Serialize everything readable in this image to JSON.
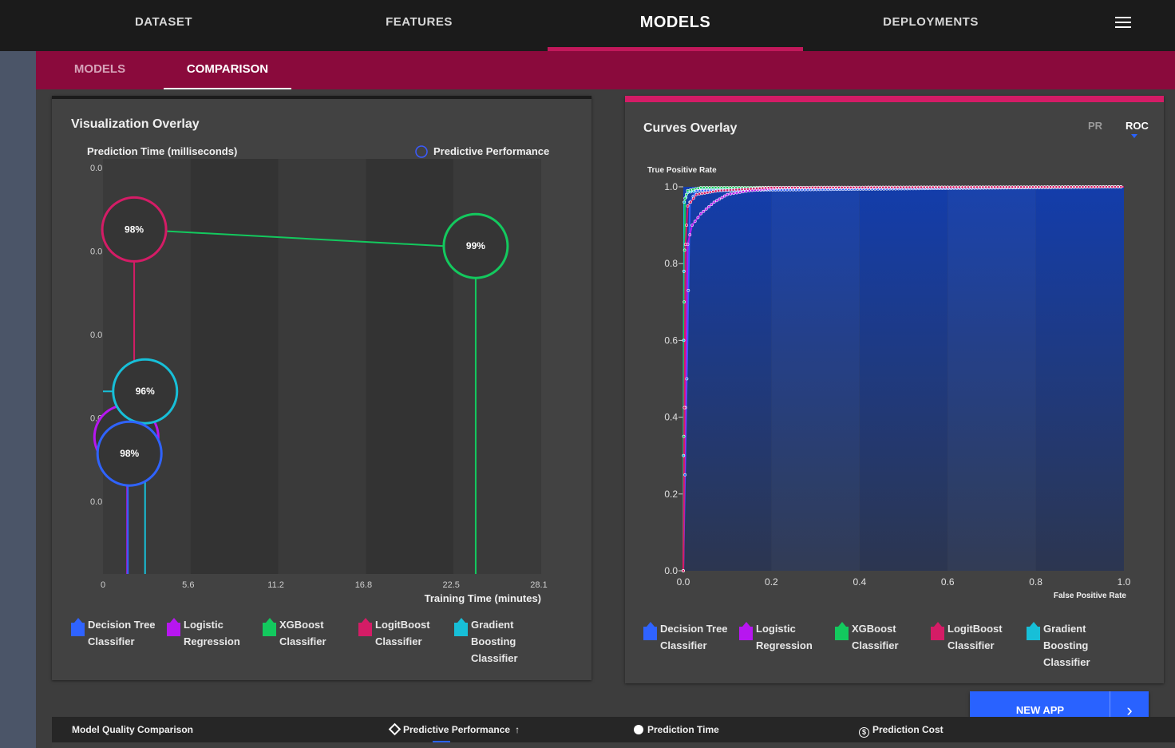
{
  "topnav": {
    "tabs": [
      {
        "label": "DATASET"
      },
      {
        "label": "FEATURES"
      },
      {
        "label": "MODELS"
      },
      {
        "label": "DEPLOYMENTS"
      }
    ],
    "active_tab": "MODELS"
  },
  "subnav": {
    "tabs": [
      {
        "label": "MODELS"
      },
      {
        "label": "COMPARISON"
      }
    ],
    "active_tab": "COMPARISON"
  },
  "viz_overlay": {
    "title": "Visualization Overlay",
    "legend_marker": "Predictive Performance",
    "legend": [
      {
        "label": "Decision Tree Classifier",
        "color": "#2f63ff"
      },
      {
        "label": "Logistic Regression",
        "color": "#b716f0"
      },
      {
        "label": "XGBoost Classifier",
        "color": "#13c95e"
      },
      {
        "label": "LogitBoost Classifier",
        "color": "#d41c66"
      },
      {
        "label": "Gradient Boosting Classifier",
        "color": "#17bfd8"
      }
    ]
  },
  "curves_overlay": {
    "title": "Curves Overlay",
    "toggle": {
      "pr": "PR",
      "roc": "ROC",
      "active": "ROC"
    },
    "legend": [
      {
        "label": "Decision Tree Classifier",
        "color": "#2f63ff"
      },
      {
        "label": "Logistic Regression",
        "color": "#b716f0"
      },
      {
        "label": "XGBoost Classifier",
        "color": "#13c95e"
      },
      {
        "label": "LogitBoost Classifier",
        "color": "#d41c66"
      },
      {
        "label": "Gradient Boosting Classifier",
        "color": "#17bfd8"
      }
    ]
  },
  "chart_data": [
    {
      "type": "scatter",
      "title": "Visualization Overlay",
      "xlabel": "Training Time (minutes)",
      "ylabel": "Prediction Time (milliseconds)",
      "x_ticks": [
        "0",
        "5.6",
        "11.2",
        "16.8",
        "22.5",
        "28.1"
      ],
      "y_ticks": [
        "0.0",
        "0.0",
        "0.0",
        "0.0",
        "0.0"
      ],
      "xlim": [
        0,
        28.1
      ],
      "size_label": "Predictive Performance",
      "points": [
        {
          "series": "LogitBoost Classifier",
          "x": 2.0,
          "y_level": 0.83,
          "label": "98%",
          "color": "#d41c66"
        },
        {
          "series": "XGBoost Classifier",
          "x": 23.9,
          "y_level": 0.79,
          "label": "99%",
          "color": "#13c95e"
        },
        {
          "series": "Gradient Boosting Classifier",
          "x": 2.7,
          "y_level": 0.44,
          "label": "96%",
          "color": "#17bfd8"
        },
        {
          "series": "Logistic Regression",
          "x": 1.5,
          "y_level": 0.33,
          "label": "",
          "color": "#b716f0"
        },
        {
          "series": "Decision Tree Classifier",
          "x": 1.7,
          "y_level": 0.29,
          "label": "98%",
          "color": "#2f63ff"
        }
      ]
    },
    {
      "type": "line",
      "title": "Curves Overlay",
      "mode": "ROC",
      "xlabel": "False Positive Rate",
      "ylabel": "True Positive Rate",
      "xlim": [
        0,
        1
      ],
      "ylim": [
        0,
        1
      ],
      "x_ticks": [
        "0.0",
        "0.2",
        "0.4",
        "0.6",
        "0.8",
        "1.0"
      ],
      "y_ticks": [
        "0.0",
        "0.2",
        "0.4",
        "0.6",
        "0.8",
        "1.0"
      ],
      "series": [
        {
          "name": "Gradient Boosting Classifier",
          "color": "#17bfd8",
          "points": [
            [
              0,
              0
            ],
            [
              0.001,
              0.6
            ],
            [
              0.002,
              0.96
            ],
            [
              0.01,
              0.985
            ],
            [
              0.05,
              0.995
            ],
            [
              1,
              1
            ]
          ]
        },
        {
          "name": "XGBoost Classifier",
          "color": "#13c95e",
          "points": [
            [
              0,
              0
            ],
            [
              0.002,
              0.7
            ],
            [
              0.004,
              0.97
            ],
            [
              0.01,
              0.99
            ],
            [
              0.04,
              0.998
            ],
            [
              1,
              1
            ]
          ]
        },
        {
          "name": "Decision Tree Classifier",
          "color": "#2f63ff",
          "points": [
            [
              0,
              0
            ],
            [
              0.008,
              0.5
            ],
            [
              0.015,
              0.96
            ],
            [
              0.03,
              0.99
            ],
            [
              1,
              1
            ]
          ]
        },
        {
          "name": "Logistic Regression",
          "color": "#b716f0",
          "points": [
            [
              0,
              0
            ],
            [
              0.01,
              0.85
            ],
            [
              0.02,
              0.9
            ],
            [
              0.04,
              0.93
            ],
            [
              0.07,
              0.96
            ],
            [
              0.1,
              0.98
            ],
            [
              0.15,
              0.99
            ],
            [
              0.22,
              0.997
            ],
            [
              1,
              1
            ]
          ]
        },
        {
          "name": "LogitBoost Classifier",
          "color": "#d41c66",
          "points": [
            [
              0,
              0
            ],
            [
              0.005,
              0.85
            ],
            [
              0.01,
              0.95
            ],
            [
              0.03,
              0.98
            ],
            [
              0.08,
              0.99
            ],
            [
              0.2,
              0.998
            ],
            [
              1,
              1
            ]
          ]
        }
      ]
    }
  ],
  "bottom_bar": {
    "title": "Model Quality Comparison",
    "predictive_performance": "Predictive Performance",
    "prediction_time": "Prediction Time",
    "prediction_cost": "Prediction Cost"
  },
  "new_app": {
    "label": "NEW APP"
  }
}
